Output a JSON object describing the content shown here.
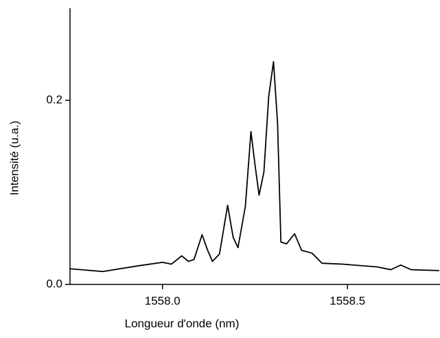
{
  "chart_data": {
    "type": "line",
    "x_label": "Longueur d'onde (nm)",
    "y_label": "Intensité (u.a.)",
    "x": [
      1557.75,
      1557.839,
      1557.931,
      1558.0,
      1558.024,
      1558.052,
      1558.07,
      1558.085,
      1558.107,
      1558.122,
      1558.135,
      1558.154,
      1558.176,
      1558.191,
      1558.204,
      1558.224,
      1558.239,
      1558.25,
      1558.261,
      1558.274,
      1558.287,
      1558.3,
      1558.311,
      1558.32,
      1558.335,
      1558.357,
      1558.376,
      1558.404,
      1558.431,
      1558.487,
      1558.58,
      1558.617,
      1558.644,
      1558.672,
      1558.748
    ],
    "series": [
      {
        "color": "#000000",
        "values": [
          0.017,
          0.014,
          0.02,
          0.024,
          0.022,
          0.031,
          0.025,
          0.027,
          0.054,
          0.037,
          0.025,
          0.033,
          0.086,
          0.051,
          0.04,
          0.085,
          0.166,
          0.13,
          0.097,
          0.122,
          0.204,
          0.242,
          0.175,
          0.046,
          0.044,
          0.055,
          0.037,
          0.034,
          0.023,
          0.022,
          0.019,
          0.016,
          0.021,
          0.016,
          0.015
        ]
      }
    ],
    "xlim": [
      1557.75,
      1558.75
    ],
    "ylim": [
      0,
      0.3
    ],
    "xticks": [
      {
        "value": 1558.0,
        "label": "1558.0"
      },
      {
        "value": 1558.5,
        "label": "1558.5"
      }
    ],
    "yticks": [
      {
        "value": 0,
        "label": "0.0"
      },
      0.2
    ]
  }
}
